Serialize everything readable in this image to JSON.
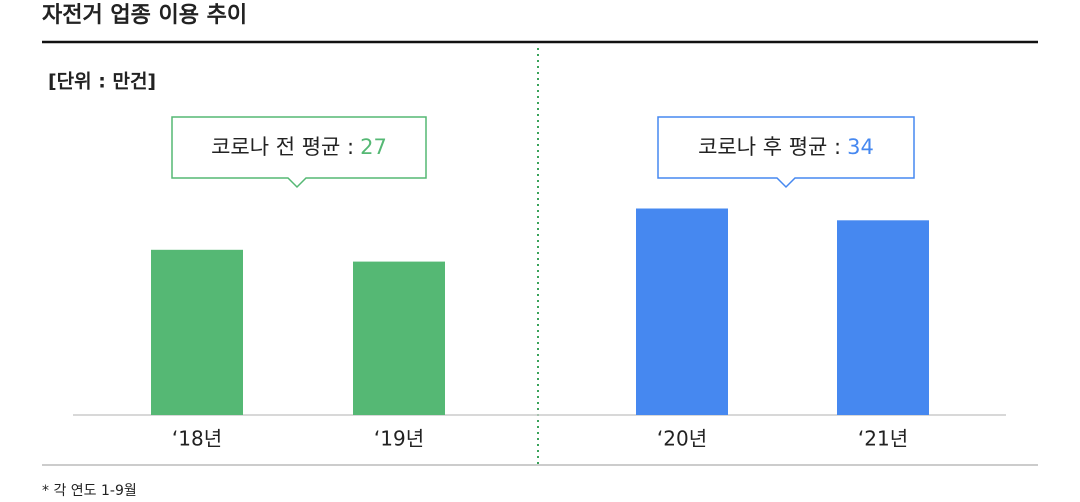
{
  "chart_data": {
    "type": "bar",
    "title": "자전거 업종 이용 추이",
    "unit_label": "[단위 : 만건]",
    "categories": [
      "‘18년",
      "‘19년",
      "‘20년",
      "‘21년"
    ],
    "values": [
      28,
      26,
      35,
      33
    ],
    "colors": [
      "#55b874",
      "#55b874",
      "#4688f0",
      "#4688f0"
    ],
    "annotations": [
      {
        "label": "코로나 전 평균 :",
        "value": 27,
        "color": "#55b874"
      },
      {
        "label": "코로나 후 평균 :",
        "value": 34,
        "color": "#4688f0"
      }
    ],
    "footnote": "* 각 연도 1-9월"
  }
}
